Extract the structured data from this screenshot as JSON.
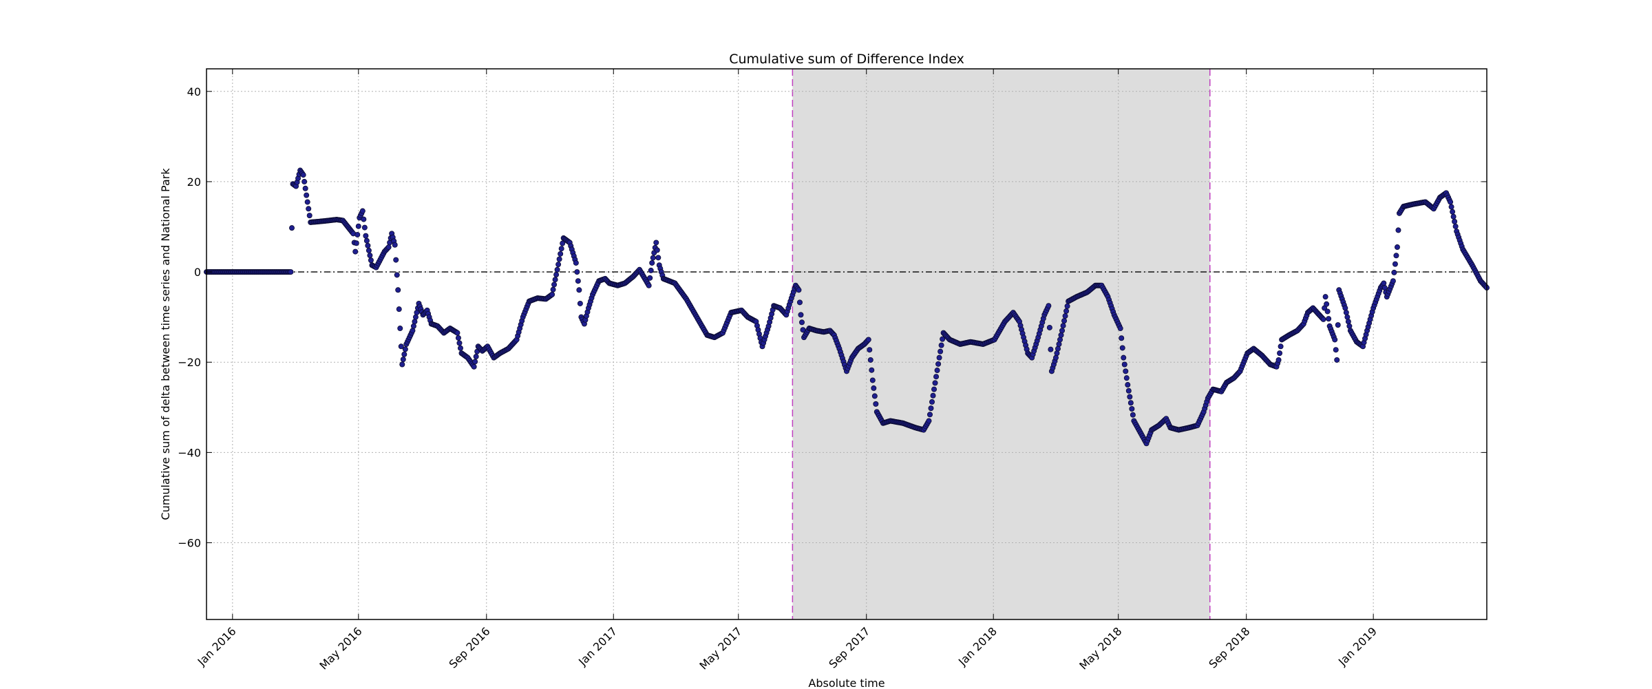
{
  "chart_data": {
    "type": "scatter",
    "title": "Cumulative sum of Difference Index",
    "xlabel": "Absolute time",
    "ylabel": "Cumulative sum of delta between time series and National Park",
    "xlim": [
      "2015-12-07",
      "2019-04-20"
    ],
    "ylim": [
      -77,
      45
    ],
    "x_ticks": [
      {
        "date": "2016-01-01",
        "label": "Jan 2016"
      },
      {
        "date": "2016-05-01",
        "label": "May 2016"
      },
      {
        "date": "2016-09-01",
        "label": "Sep 2016"
      },
      {
        "date": "2017-01-01",
        "label": "Jan 2017"
      },
      {
        "date": "2017-05-01",
        "label": "May 2017"
      },
      {
        "date": "2017-09-01",
        "label": "Sep 2017"
      },
      {
        "date": "2018-01-01",
        "label": "Jan 2018"
      },
      {
        "date": "2018-05-01",
        "label": "May 2018"
      },
      {
        "date": "2018-09-01",
        "label": "Sep 2018"
      },
      {
        "date": "2019-01-01",
        "label": "Jan 2019"
      }
    ],
    "y_ticks": [
      {
        "value": 40,
        "label": "40"
      },
      {
        "value": 20,
        "label": "20"
      },
      {
        "value": 0,
        "label": "0"
      },
      {
        "value": -20,
        "label": "−20"
      },
      {
        "value": -40,
        "label": "−40"
      },
      {
        "value": -60,
        "label": "−60"
      }
    ],
    "grid": true,
    "reference_line": {
      "value": 0,
      "style": "dash-dot",
      "color": "#000000"
    },
    "shaded_region": {
      "start": "2017-06-22",
      "end": "2018-07-28",
      "color": "#dddddd",
      "edge_color": "#bf40bf"
    },
    "marker_color": "#1f1f8f",
    "marker_edge_color": "#0a0a2e",
    "series": [
      {
        "points": [
          [
            "2015-12-07",
            0
          ],
          [
            "2016-01-15",
            0
          ],
          [
            "2016-02-26",
            0
          ],
          [
            "2016-02-28",
            19.5
          ],
          [
            "2016-03-02",
            19
          ],
          [
            "2016-03-06",
            22.5
          ],
          [
            "2016-03-09",
            21.5
          ],
          [
            "2016-03-12",
            17
          ],
          [
            "2016-03-16",
            11
          ],
          [
            "2016-03-30",
            11.3
          ],
          [
            "2016-04-10",
            11.6
          ],
          [
            "2016-04-16",
            11.4
          ],
          [
            "2016-04-26",
            8.5
          ],
          [
            "2016-04-28",
            4.5
          ],
          [
            "2016-05-02",
            12
          ],
          [
            "2016-05-05",
            13.5
          ],
          [
            "2016-05-08",
            8
          ],
          [
            "2016-05-14",
            1.5
          ],
          [
            "2016-05-18",
            1
          ],
          [
            "2016-05-26",
            4.5
          ],
          [
            "2016-05-30",
            5.5
          ],
          [
            "2016-06-02",
            8.5
          ],
          [
            "2016-06-05",
            6
          ],
          [
            "2016-06-08",
            -4
          ],
          [
            "2016-06-10",
            -12.5
          ],
          [
            "2016-06-12",
            -20.5
          ],
          [
            "2016-06-16",
            -16
          ],
          [
            "2016-06-22",
            -13
          ],
          [
            "2016-06-28",
            -7
          ],
          [
            "2016-07-02",
            -9.5
          ],
          [
            "2016-07-06",
            -8.5
          ],
          [
            "2016-07-10",
            -11.5
          ],
          [
            "2016-07-16",
            -12
          ],
          [
            "2016-07-22",
            -13.5
          ],
          [
            "2016-07-28",
            -12.5
          ],
          [
            "2016-08-04",
            -13.5
          ],
          [
            "2016-08-08",
            -18
          ],
          [
            "2016-08-14",
            -19
          ],
          [
            "2016-08-20",
            -21
          ],
          [
            "2016-08-24",
            -16.5
          ],
          [
            "2016-08-28",
            -17.5
          ],
          [
            "2016-09-02",
            -16.5
          ],
          [
            "2016-09-08",
            -19
          ],
          [
            "2016-09-14",
            -18
          ],
          [
            "2016-09-22",
            -17
          ],
          [
            "2016-09-30",
            -15
          ],
          [
            "2016-10-06",
            -10
          ],
          [
            "2016-10-12",
            -6.5
          ],
          [
            "2016-10-20",
            -5.8
          ],
          [
            "2016-10-28",
            -6
          ],
          [
            "2016-11-03",
            -5
          ],
          [
            "2016-11-08",
            0.5
          ],
          [
            "2016-11-14",
            7.5
          ],
          [
            "2016-11-20",
            6.5
          ],
          [
            "2016-11-26",
            2
          ],
          [
            "2016-11-29",
            -4
          ],
          [
            "2016-12-01",
            -10
          ],
          [
            "2016-12-04",
            -11.5
          ],
          [
            "2016-12-08",
            -8
          ],
          [
            "2016-12-12",
            -5
          ],
          [
            "2016-12-18",
            -2
          ],
          [
            "2016-12-24",
            -1.5
          ],
          [
            "2016-12-28",
            -2.5
          ],
          [
            "2017-01-05",
            -3
          ],
          [
            "2017-01-12",
            -2.5
          ],
          [
            "2017-01-20",
            -1
          ],
          [
            "2017-01-26",
            0.5
          ],
          [
            "2017-02-04",
            -3
          ],
          [
            "2017-02-07",
            2
          ],
          [
            "2017-02-11",
            6.5
          ],
          [
            "2017-02-14",
            1.5
          ],
          [
            "2017-02-18",
            -1.5
          ],
          [
            "2017-03-01",
            -2.5
          ],
          [
            "2017-03-12",
            -6
          ],
          [
            "2017-03-22",
            -10
          ],
          [
            "2017-04-01",
            -14
          ],
          [
            "2017-04-08",
            -14.5
          ],
          [
            "2017-04-16",
            -13.5
          ],
          [
            "2017-04-24",
            -9
          ],
          [
            "2017-05-04",
            -8.5
          ],
          [
            "2017-05-10",
            -10
          ],
          [
            "2017-05-18",
            -11
          ],
          [
            "2017-05-24",
            -16.5
          ],
          [
            "2017-05-30",
            -12
          ],
          [
            "2017-06-04",
            -7.5
          ],
          [
            "2017-06-10",
            -8
          ],
          [
            "2017-06-16",
            -9.5
          ],
          [
            "2017-06-20",
            -6.5
          ],
          [
            "2017-06-25",
            -3
          ],
          [
            "2017-06-28",
            -4
          ],
          [
            "2017-06-30",
            -9.5
          ],
          [
            "2017-07-03",
            -14.5
          ],
          [
            "2017-07-08",
            -12.5
          ],
          [
            "2017-07-15",
            -13
          ],
          [
            "2017-07-22",
            -13.3
          ],
          [
            "2017-07-28",
            -13
          ],
          [
            "2017-08-01",
            -14
          ],
          [
            "2017-08-06",
            -17
          ],
          [
            "2017-08-13",
            -22
          ],
          [
            "2017-08-18",
            -19
          ],
          [
            "2017-08-24",
            -17
          ],
          [
            "2017-08-30",
            -16
          ],
          [
            "2017-09-03",
            -15
          ],
          [
            "2017-09-07",
            -24
          ],
          [
            "2017-09-11",
            -31
          ],
          [
            "2017-09-17",
            -33.5
          ],
          [
            "2017-09-24",
            -33
          ],
          [
            "2017-10-06",
            -33.5
          ],
          [
            "2017-10-18",
            -34.5
          ],
          [
            "2017-10-26",
            -35
          ],
          [
            "2017-10-31",
            -33
          ],
          [
            "2017-11-05",
            -26
          ],
          [
            "2017-11-10",
            -19
          ],
          [
            "2017-11-14",
            -13.5
          ],
          [
            "2017-11-20",
            -15
          ],
          [
            "2017-11-30",
            -16
          ],
          [
            "2017-12-10",
            -15.5
          ],
          [
            "2017-12-22",
            -16
          ],
          [
            "2018-01-02",
            -15
          ],
          [
            "2018-01-12",
            -11
          ],
          [
            "2018-01-20",
            -9
          ],
          [
            "2018-01-26",
            -11
          ],
          [
            "2018-02-03",
            -18
          ],
          [
            "2018-02-07",
            -19
          ],
          [
            "2018-02-13",
            -14.5
          ],
          [
            "2018-02-19",
            -9.5
          ],
          [
            "2018-02-23",
            -7.5
          ],
          [
            "2018-02-26",
            -22
          ],
          [
            "2018-03-02",
            -19
          ],
          [
            "2018-03-08",
            -13
          ],
          [
            "2018-03-14",
            -6.5
          ],
          [
            "2018-03-22",
            -5.5
          ],
          [
            "2018-04-01",
            -4.5
          ],
          [
            "2018-04-09",
            -3
          ],
          [
            "2018-04-15",
            -3
          ],
          [
            "2018-04-21",
            -5.5
          ],
          [
            "2018-04-27",
            -9.5
          ],
          [
            "2018-05-03",
            -12.5
          ],
          [
            "2018-05-06",
            -19
          ],
          [
            "2018-05-10",
            -25
          ],
          [
            "2018-05-16",
            -33
          ],
          [
            "2018-05-22",
            -35.5
          ],
          [
            "2018-05-28",
            -38
          ],
          [
            "2018-06-02",
            -35
          ],
          [
            "2018-06-09",
            -34
          ],
          [
            "2018-06-16",
            -32.5
          ],
          [
            "2018-06-20",
            -34.5
          ],
          [
            "2018-06-28",
            -35
          ],
          [
            "2018-07-08",
            -34.5
          ],
          [
            "2018-07-16",
            -34
          ],
          [
            "2018-07-22",
            -31
          ],
          [
            "2018-07-26",
            -28
          ],
          [
            "2018-07-31",
            -26
          ],
          [
            "2018-08-08",
            -26.5
          ],
          [
            "2018-08-13",
            -24.5
          ],
          [
            "2018-08-20",
            -23.5
          ],
          [
            "2018-08-26",
            -22
          ],
          [
            "2018-09-02",
            -18
          ],
          [
            "2018-09-08",
            -17
          ],
          [
            "2018-09-16",
            -18.5
          ],
          [
            "2018-09-24",
            -20.5
          ],
          [
            "2018-09-30",
            -21
          ],
          [
            "2018-10-02",
            -19.5
          ],
          [
            "2018-10-05",
            -15
          ],
          [
            "2018-10-12",
            -14
          ],
          [
            "2018-10-20",
            -13
          ],
          [
            "2018-10-26",
            -11.5
          ],
          [
            "2018-10-30",
            -9
          ],
          [
            "2018-11-04",
            -8
          ],
          [
            "2018-11-10",
            -9.5
          ],
          [
            "2018-11-14",
            -10.5
          ],
          [
            "2018-11-16",
            -5.5
          ],
          [
            "2018-11-20",
            -12
          ],
          [
            "2018-11-25",
            -15
          ],
          [
            "2018-11-27",
            -19.5
          ],
          [
            "2018-11-29",
            -4
          ],
          [
            "2018-12-05",
            -8
          ],
          [
            "2018-12-10",
            -13
          ],
          [
            "2018-12-16",
            -15.5
          ],
          [
            "2018-12-22",
            -16.5
          ],
          [
            "2018-12-26",
            -13
          ],
          [
            "2019-01-01",
            -8
          ],
          [
            "2019-01-08",
            -3.5
          ],
          [
            "2019-01-11",
            -2.5
          ],
          [
            "2019-01-14",
            -5.5
          ],
          [
            "2019-01-20",
            -2
          ],
          [
            "2019-01-24",
            5.5
          ],
          [
            "2019-01-26",
            13
          ],
          [
            "2019-01-30",
            14.5
          ],
          [
            "2019-02-08",
            15
          ],
          [
            "2019-02-20",
            15.5
          ],
          [
            "2019-02-28",
            14
          ],
          [
            "2019-03-06",
            16.5
          ],
          [
            "2019-03-12",
            17.5
          ],
          [
            "2019-03-16",
            15.5
          ],
          [
            "2019-03-22",
            9
          ],
          [
            "2019-03-28",
            5
          ],
          [
            "2019-04-06",
            1.5
          ],
          [
            "2019-04-14",
            -2
          ],
          [
            "2019-04-20",
            -3.5
          ]
        ]
      }
    ]
  }
}
